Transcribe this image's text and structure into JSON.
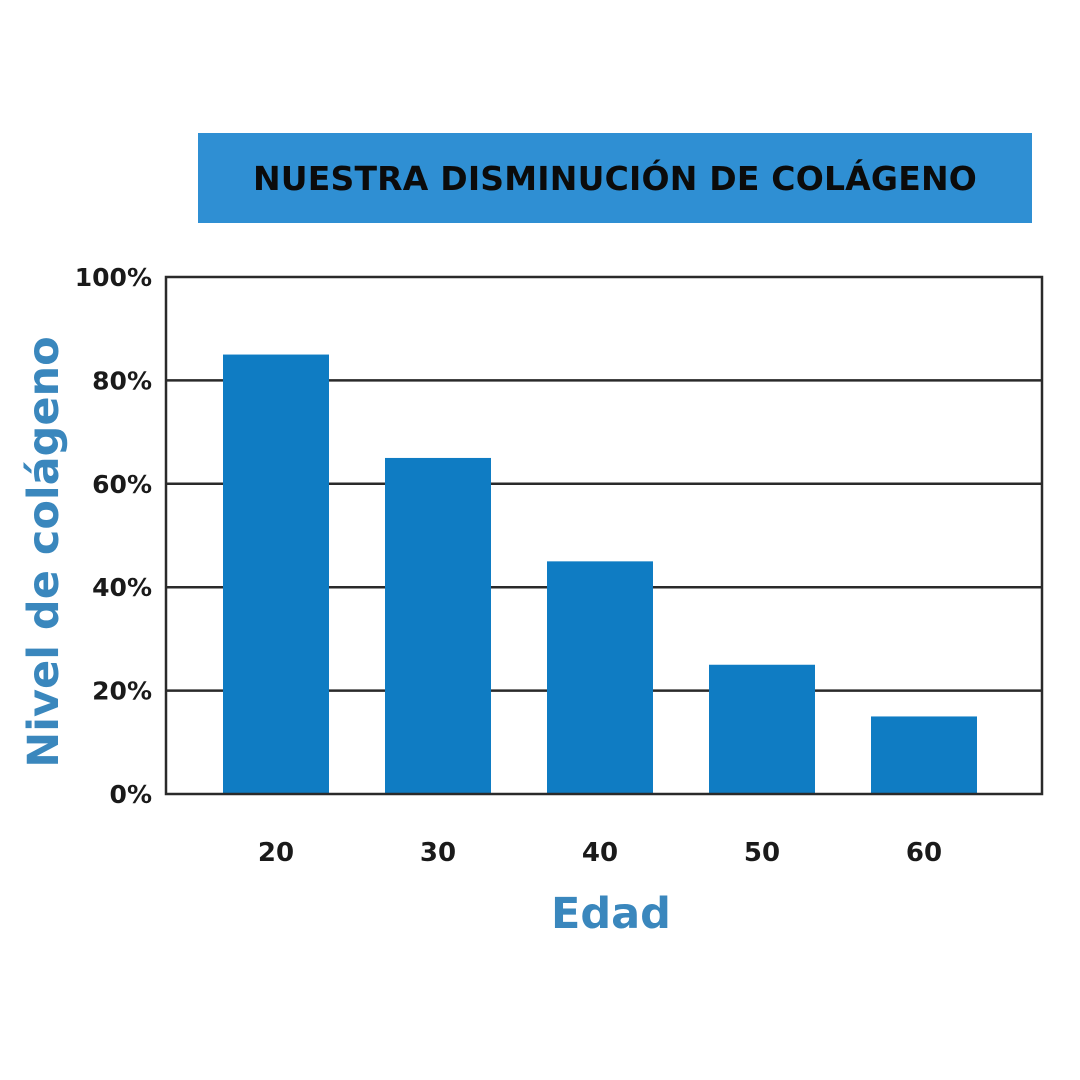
{
  "chart_data": {
    "type": "bar",
    "title": "NUESTRA DISMINUCIÓN DE COLÁGENO",
    "xlabel": "Edad",
    "ylabel": "Nivel de colágeno",
    "categories": [
      "20",
      "30",
      "40",
      "50",
      "60"
    ],
    "values": [
      85,
      65,
      45,
      25,
      15
    ],
    "ylim": [
      0,
      100
    ],
    "yticks": [
      "0%",
      "20%",
      "40%",
      "60%",
      "80%",
      "100%"
    ],
    "grid": true,
    "bar_color": "#0f7cc3",
    "title_bg_color": "#2f8fd3",
    "axis_label_color": "#3a87bd"
  }
}
